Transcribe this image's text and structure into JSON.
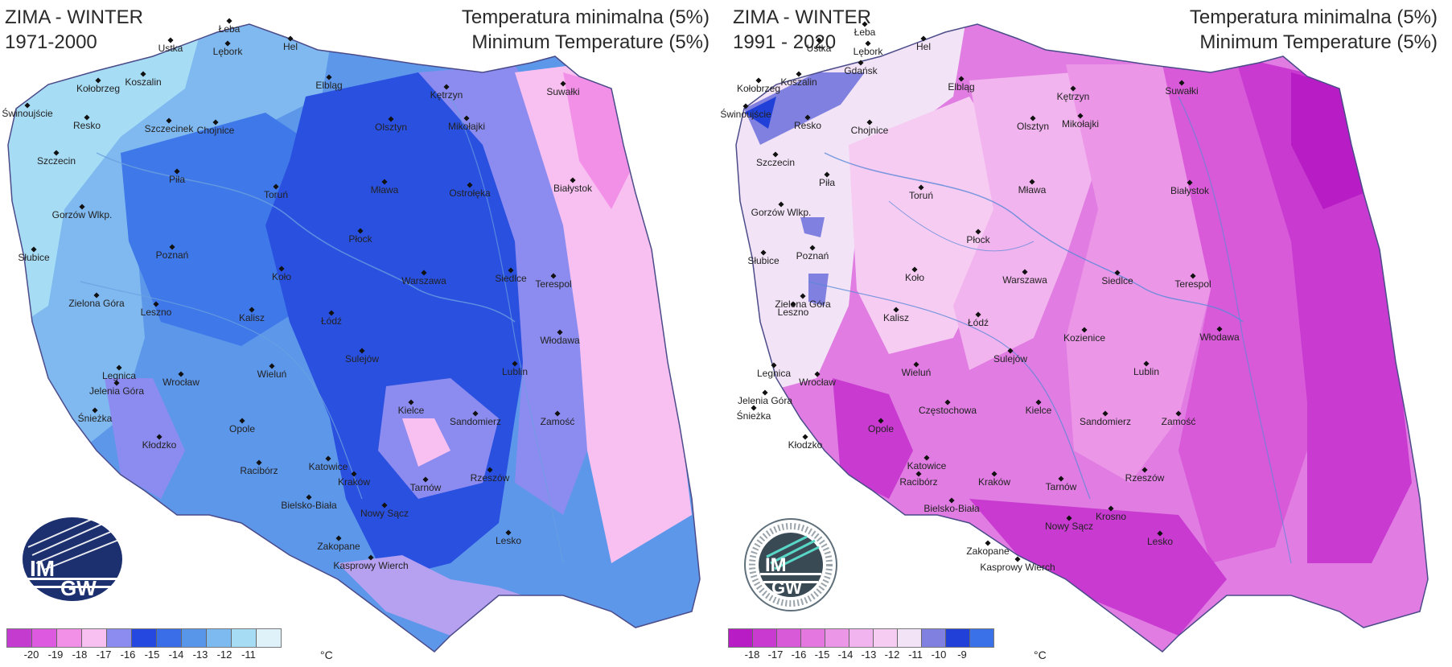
{
  "left_map": {
    "season": "ZIMA - WINTER",
    "period": "1971-2000",
    "metric_pl": "Temperatura minimalna (5%)",
    "metric_en": "Minimum Temperature (5%)",
    "logo_text": [
      "IM",
      "GW"
    ],
    "legend": {
      "colors": [
        "#c43bcf",
        "#dd5ae0",
        "#f290e8",
        "#f8c0f0",
        "#8c8cf0",
        "#2448e0",
        "#3a6ee8",
        "#5896ea",
        "#7cbaf0",
        "#a6dcf4",
        "#dff2fa"
      ],
      "labels": [
        "-20",
        "-19",
        "-18",
        "-17",
        "-16",
        "-15",
        "-14",
        "-13",
        "-12",
        "-11"
      ],
      "unit": "°C"
    },
    "cities": [
      "Łeba",
      "Hel",
      "Ustka",
      "Lębork",
      "Koszalin",
      "Kołobrzeg",
      "Elbląg",
      "Kętrzyn",
      "Suwałki",
      "Świnoujście",
      "Resko",
      "Szczecinek",
      "Chojnice",
      "Olsztyn",
      "Mikołajki",
      "Szczecin",
      "Piła",
      "Toruń",
      "Mława",
      "Ostrołęka",
      "Białystok",
      "Gorzów Wlkp.",
      "Płock",
      "Słubice",
      "Poznań",
      "Koło",
      "Warszawa",
      "Siedlce",
      "Terespol",
      "Zielona Góra",
      "Leszno",
      "Kalisz",
      "Łódź",
      "Włodawa",
      "Sulejów",
      "Lublin",
      "Legnica",
      "Wrocław",
      "Wieluń",
      "Jelenia Góra",
      "Kielce",
      "Śnieżka",
      "Opole",
      "Sandomierz",
      "Zamość",
      "Kłodzko",
      "Racibórz",
      "Katowice",
      "Kraków",
      "Tarnów",
      "Rzeszów",
      "Bielsko-Biała",
      "Nowy Sącz",
      "Lesko",
      "Zakopane",
      "Kasprowy Wierch"
    ]
  },
  "right_map": {
    "season": "ZIMA - WINTER",
    "period": "1991 - 2020",
    "metric_pl": "Temperatura minimalna (5%)",
    "metric_en": "Minimum Temperature (5%)",
    "logo_text": [
      "IM",
      "GW"
    ],
    "legend": {
      "colors": [
        "#b81cc4",
        "#c83ad0",
        "#d85ad8",
        "#e478e0",
        "#ec96e8",
        "#f2b4ee",
        "#f6ccf2",
        "#f2e4f6",
        "#8080e0",
        "#2040d8",
        "#3a70e8"
      ],
      "labels": [
        "-18",
        "-17",
        "-16",
        "-15",
        "-14",
        "-13",
        "-12",
        "-11",
        "-10",
        "-9"
      ],
      "unit": "°C"
    },
    "cities": [
      "Łeba",
      "Hel",
      "Ustka",
      "Lębork",
      "Gdańsk",
      "Koszalin",
      "Kołobrzeg",
      "Elbląg",
      "Kętrzyn",
      "Suwałki",
      "Świnoujście",
      "Resko",
      "Chojnice",
      "Olsztyn",
      "Mikołajki",
      "Szczecin",
      "Piła",
      "Toruń",
      "Mława",
      "Białystok",
      "Gorzów Wlkp.",
      "Płock",
      "Słubice",
      "Poznań",
      "Koło",
      "Warszawa",
      "Siedlce",
      "Terespol",
      "Zielona Góra",
      "Leszno",
      "Kalisz",
      "Łódź",
      "Kozienice",
      "Włodawa",
      "Sulejów",
      "Lublin",
      "Legnica",
      "Wrocław",
      "Wieluń",
      "Częstochowa",
      "Jelenia Góra",
      "Kielce",
      "Śnieżka",
      "Sandomierz",
      "Zamość",
      "Opole",
      "Kłodzko",
      "Katowice",
      "Kraków",
      "Tarnów",
      "Rzeszów",
      "Racibórz",
      "Bielsko-Biała",
      "Krosno",
      "Nowy Sącz",
      "Lesko",
      "Zakopane",
      "Kasprowy Wierch"
    ]
  }
}
